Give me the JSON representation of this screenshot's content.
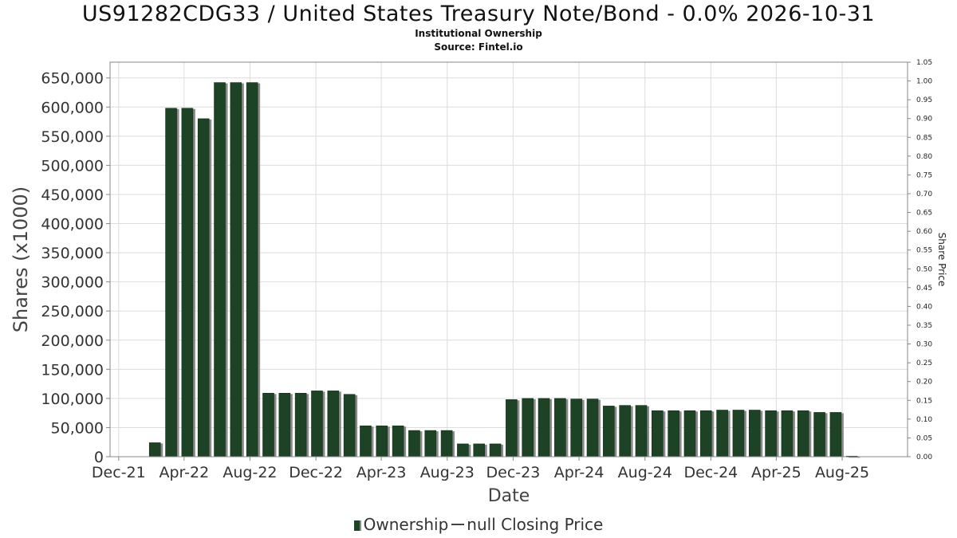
{
  "title": "US91282CDG33 / United States Treasury Note/Bond - 0.0% 2026-10-31",
  "subtitle": "Institutional Ownership",
  "source": "Source: Fintel.io",
  "legend": {
    "ownership": "Ownership",
    "price": "null Closing Price"
  },
  "colors": {
    "bar": "#1e4226",
    "bar_shadow": "#8a8a8a",
    "grid": "#dddddd",
    "axis": "#888888"
  },
  "chart_data": {
    "type": "bar",
    "xlabel": "Date",
    "ylabel": "Shares (x1000)",
    "y2label": "Share Price",
    "ylim": [
      0,
      677000
    ],
    "y2lim": [
      0,
      1.05
    ],
    "grid": true,
    "legend_position": "bottom",
    "x_range": [
      "2021-11-15",
      "2025-11-30"
    ],
    "x_ticks": [
      {
        "label": "Dec-21",
        "date": "2021-12-01"
      },
      {
        "label": "Apr-22",
        "date": "2022-04-01"
      },
      {
        "label": "Aug-22",
        "date": "2022-08-01"
      },
      {
        "label": "Dec-22",
        "date": "2022-12-01"
      },
      {
        "label": "Apr-23",
        "date": "2023-04-01"
      },
      {
        "label": "Aug-23",
        "date": "2023-08-01"
      },
      {
        "label": "Dec-23",
        "date": "2023-12-01"
      },
      {
        "label": "Apr-24",
        "date": "2024-04-01"
      },
      {
        "label": "Aug-24",
        "date": "2024-08-01"
      },
      {
        "label": "Dec-24",
        "date": "2024-12-01"
      },
      {
        "label": "Apr-25",
        "date": "2025-04-01"
      },
      {
        "label": "Aug-25",
        "date": "2025-08-01"
      }
    ],
    "y_ticks": [
      0,
      50000,
      100000,
      150000,
      200000,
      250000,
      300000,
      350000,
      400000,
      450000,
      500000,
      550000,
      600000,
      650000
    ],
    "y_tick_labels": [
      "0",
      "50,000",
      "100,000",
      "150,000",
      "200,000",
      "250,000",
      "300,000",
      "350,000",
      "400,000",
      "450,000",
      "500,000",
      "550,000",
      "600,000",
      "650,000"
    ],
    "y2_ticks": [
      "0.00",
      "0.05",
      "0.10",
      "0.15",
      "0.20",
      "0.25",
      "0.30",
      "0.35",
      "0.40",
      "0.45",
      "0.50",
      "0.55",
      "0.60",
      "0.65",
      "0.70",
      "0.75",
      "0.80",
      "0.85",
      "0.90",
      "0.95",
      "1.00",
      "1.05"
    ],
    "series": [
      {
        "name": "Ownership",
        "points": [
          {
            "date": "2022-02-06",
            "value": 24000
          },
          {
            "date": "2022-03-08",
            "value": 598000
          },
          {
            "date": "2022-04-07",
            "value": 598000
          },
          {
            "date": "2022-05-07",
            "value": 580000
          },
          {
            "date": "2022-06-06",
            "value": 642000
          },
          {
            "date": "2022-07-06",
            "value": 642000
          },
          {
            "date": "2022-08-05",
            "value": 642000
          },
          {
            "date": "2022-09-04",
            "value": 109000
          },
          {
            "date": "2022-10-04",
            "value": 109000
          },
          {
            "date": "2022-11-03",
            "value": 109000
          },
          {
            "date": "2022-12-03",
            "value": 113000
          },
          {
            "date": "2023-01-02",
            "value": 113000
          },
          {
            "date": "2023-02-01",
            "value": 107000
          },
          {
            "date": "2023-03-03",
            "value": 53000
          },
          {
            "date": "2023-04-02",
            "value": 53000
          },
          {
            "date": "2023-05-02",
            "value": 53000
          },
          {
            "date": "2023-06-01",
            "value": 45000
          },
          {
            "date": "2023-07-01",
            "value": 45000
          },
          {
            "date": "2023-07-31",
            "value": 45000
          },
          {
            "date": "2023-08-30",
            "value": 22000
          },
          {
            "date": "2023-09-29",
            "value": 22000
          },
          {
            "date": "2023-10-29",
            "value": 22000
          },
          {
            "date": "2023-11-28",
            "value": 98000
          },
          {
            "date": "2023-12-28",
            "value": 100000
          },
          {
            "date": "2024-01-27",
            "value": 100000
          },
          {
            "date": "2024-02-26",
            "value": 100000
          },
          {
            "date": "2024-03-27",
            "value": 99000
          },
          {
            "date": "2024-04-26",
            "value": 99000
          },
          {
            "date": "2024-05-26",
            "value": 87000
          },
          {
            "date": "2024-06-25",
            "value": 88000
          },
          {
            "date": "2024-07-25",
            "value": 88000
          },
          {
            "date": "2024-08-24",
            "value": 79000
          },
          {
            "date": "2024-09-23",
            "value": 79000
          },
          {
            "date": "2024-10-23",
            "value": 79000
          },
          {
            "date": "2024-11-22",
            "value": 79000
          },
          {
            "date": "2024-12-22",
            "value": 80000
          },
          {
            "date": "2025-01-21",
            "value": 80000
          },
          {
            "date": "2025-02-20",
            "value": 80000
          },
          {
            "date": "2025-03-22",
            "value": 79000
          },
          {
            "date": "2025-04-21",
            "value": 79000
          },
          {
            "date": "2025-05-21",
            "value": 79000
          },
          {
            "date": "2025-06-20",
            "value": 76000
          },
          {
            "date": "2025-07-20",
            "value": 76000
          },
          {
            "date": "2025-08-19",
            "value": 1000
          }
        ]
      },
      {
        "name": "null Closing Price",
        "values": []
      }
    ]
  }
}
